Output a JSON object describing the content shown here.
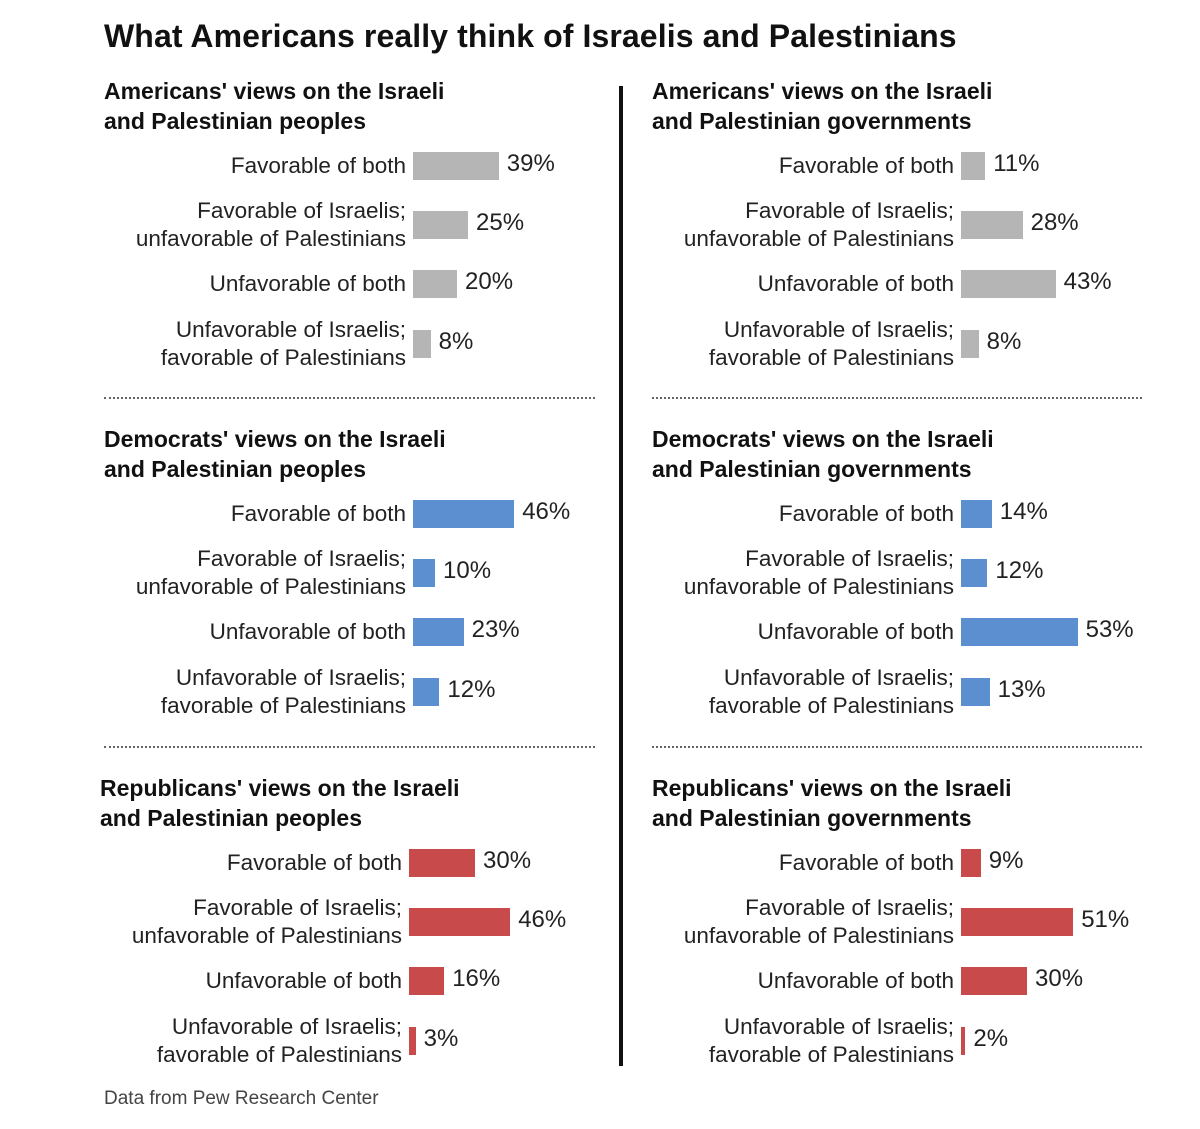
{
  "title": "What Americans really think of Israelis and Palestinians",
  "source": "Data from Pew Research Center",
  "colors": {
    "all": "#b5b5b5",
    "dem": "#5b8fd0",
    "rep": "#c94a4a",
    "text": "#222222"
  },
  "chart_data": [
    {
      "type": "bar",
      "orientation": "horizontal",
      "title": "Americans' views on the Israeli\nand Palestinian peoples",
      "categories": [
        "Favorable of both",
        "Favorable of Israelis;\nunfavorable of Palestinians",
        "Unfavorable of both",
        "Unfavorable of Israelis;\nfavorable of Palestinians"
      ],
      "values": [
        39,
        25,
        20,
        8
      ],
      "labels": [
        "39%",
        "25%",
        "20%",
        "8%"
      ],
      "color_key": "all"
    },
    {
      "type": "bar",
      "orientation": "horizontal",
      "title": "Americans' views on the Israeli\nand Palestinian governments",
      "categories": [
        "Favorable of both",
        "Favorable of Israelis;\nunfavorable of Palestinians",
        "Unfavorable of both",
        "Unfavorable of Israelis;\nfavorable of Palestinians"
      ],
      "values": [
        11,
        28,
        43,
        8
      ],
      "labels": [
        "11%",
        "28%",
        "43%",
        "8%"
      ],
      "color_key": "all"
    },
    {
      "type": "bar",
      "orientation": "horizontal",
      "title": "Democrats' views on the Israeli\nand Palestinian peoples",
      "categories": [
        "Favorable of both",
        "Favorable of Israelis;\nunfavorable of Palestinians",
        "Unfavorable of both",
        "Unfavorable of Israelis;\nfavorable of Palestinians"
      ],
      "values": [
        46,
        10,
        23,
        12
      ],
      "labels": [
        "46%",
        "10%",
        "23%",
        "12%"
      ],
      "color_key": "dem"
    },
    {
      "type": "bar",
      "orientation": "horizontal",
      "title": "Democrats' views on the Israeli\nand Palestinian governments",
      "categories": [
        "Favorable of both",
        "Favorable of Israelis;\nunfavorable of Palestinians",
        "Unfavorable of both",
        "Unfavorable of Israelis;\nfavorable of Palestinians"
      ],
      "values": [
        14,
        12,
        53,
        13
      ],
      "labels": [
        "14%",
        "12%",
        "53%",
        "13%"
      ],
      "color_key": "dem"
    },
    {
      "type": "bar",
      "orientation": "horizontal",
      "title": "Republicans' views on the Israeli\nand Palestinian peoples",
      "categories": [
        "Favorable of both",
        "Favorable of Israelis;\nunfavorable of Palestinians",
        "Unfavorable of both",
        "Unfavorable of Israelis;\nfavorable of Palestinians"
      ],
      "values": [
        30,
        46,
        16,
        3
      ],
      "labels": [
        "30%",
        "46%",
        "16%",
        "3%"
      ],
      "color_key": "rep"
    },
    {
      "type": "bar",
      "orientation": "horizontal",
      "title": "Republicans' views on the Israeli\nand Palestinian governments",
      "categories": [
        "Favorable of both",
        "Favorable of Israelis;\nunfavorable of Palestinians",
        "Unfavorable of both",
        "Unfavorable of Israelis;\nfavorable of Palestinians"
      ],
      "values": [
        9,
        51,
        30,
        2
      ],
      "labels": [
        "9%",
        "51%",
        "30%",
        "2%"
      ],
      "color_key": "rep"
    }
  ]
}
